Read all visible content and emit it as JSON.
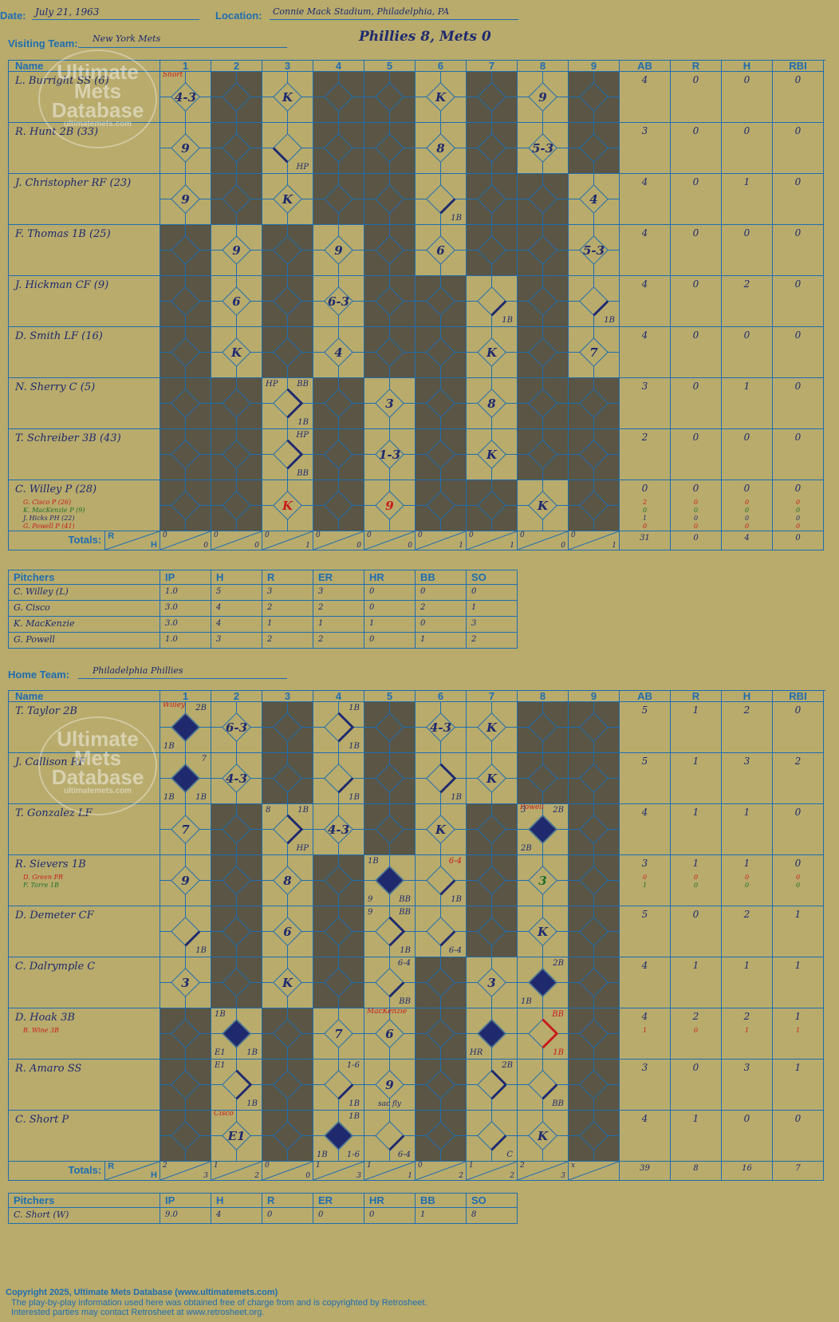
{
  "header": {
    "date_label": "Date:",
    "date": "July 21, 1963",
    "location_label": "Location:",
    "location": "Connie Mack Stadium, Philadelphia, PA",
    "visiting_label": "Visiting Team:",
    "visiting_team": "New York Mets",
    "home_label": "Home Team:",
    "home_team": "Philadelphia Phillies",
    "result": "Phillies 8, Mets 0"
  },
  "watermark": {
    "line1": "Ultimate",
    "line2": "Mets",
    "line3": "Database",
    "url": "ultimatemets.com"
  },
  "columns": {
    "name": "Name",
    "innings": [
      "1",
      "2",
      "3",
      "4",
      "5",
      "6",
      "7",
      "8",
      "9"
    ],
    "ab": "AB",
    "r": "R",
    "h": "H",
    "rbi": "RBI"
  },
  "totals_label": "Totals:",
  "rh_r": "R",
  "rh_h": "H",
  "visiting": {
    "players": [
      {
        "name": "L. Burright SS (6)",
        "subs": [],
        "ab": "4",
        "r": "0",
        "h": "0",
        "rbi": "0",
        "sub_stats": [],
        "cells": [
          {
            "t": "4-3",
            "note": "Short",
            "nc": "red"
          },
          {
            "dark": true
          },
          {
            "t": "K"
          },
          {
            "dark": true
          },
          {
            "dark": true
          },
          {
            "t": "K"
          },
          {
            "dark": true
          },
          {
            "t": "9"
          },
          {
            "dark": true
          }
        ]
      },
      {
        "name": "R. Hunt 2B (33)",
        "subs": [],
        "ab": "3",
        "r": "0",
        "h": "0",
        "rbi": "0",
        "sub_stats": [],
        "cells": [
          {
            "t": "9"
          },
          {
            "dark": true
          },
          {
            "line": "hp",
            "br": "HP"
          },
          {
            "dark": true
          },
          {
            "dark": true
          },
          {
            "t": "8"
          },
          {
            "dark": true
          },
          {
            "t": "5-3"
          },
          {
            "dark": true
          }
        ]
      },
      {
        "name": "J. Christopher RF (23)",
        "subs": [],
        "ab": "4",
        "r": "0",
        "h": "1",
        "rbi": "0",
        "sub_stats": [],
        "cells": [
          {
            "t": "9"
          },
          {
            "dark": true
          },
          {
            "t": "K"
          },
          {
            "dark": true
          },
          {
            "dark": true
          },
          {
            "line": "1b",
            "br": "1B"
          },
          {
            "dark": true
          },
          {
            "dark": true
          },
          {
            "t": "4"
          }
        ]
      },
      {
        "name": "F. Thomas 1B (25)",
        "subs": [],
        "ab": "4",
        "r": "0",
        "h": "0",
        "rbi": "0",
        "sub_stats": [],
        "cells": [
          {
            "dark": true
          },
          {
            "t": "9"
          },
          {
            "dark": true
          },
          {
            "t": "9"
          },
          {
            "dark": true
          },
          {
            "t": "6"
          },
          {
            "dark": true
          },
          {
            "dark": true
          },
          {
            "t": "5-3"
          }
        ]
      },
      {
        "name": "J. Hickman CF (9)",
        "subs": [],
        "ab": "4",
        "r": "0",
        "h": "2",
        "rbi": "0",
        "sub_stats": [],
        "cells": [
          {
            "dark": true
          },
          {
            "t": "6"
          },
          {
            "dark": true
          },
          {
            "t": "6-3"
          },
          {
            "dark": true
          },
          {
            "dark": true
          },
          {
            "line": "1b",
            "br": "1B"
          },
          {
            "dark": true
          },
          {
            "line": "1b",
            "br": "1B"
          }
        ]
      },
      {
        "name": "D. Smith LF (16)",
        "subs": [],
        "ab": "4",
        "r": "0",
        "h": "0",
        "rbi": "0",
        "sub_stats": [],
        "cells": [
          {
            "dark": true
          },
          {
            "t": "K"
          },
          {
            "dark": true
          },
          {
            "t": "4"
          },
          {
            "dark": true
          },
          {
            "dark": true
          },
          {
            "t": "K"
          },
          {
            "dark": true
          },
          {
            "t": "7"
          }
        ]
      },
      {
        "name": "N. Sherry C (5)",
        "subs": [],
        "ab": "3",
        "r": "0",
        "h": "1",
        "rbi": "0",
        "sub_stats": [],
        "cells": [
          {
            "dark": true
          },
          {
            "dark": true
          },
          {
            "line": "run",
            "tl": "HP",
            "tr": "BB",
            "br": "1B"
          },
          {
            "dark": true
          },
          {
            "t": "3"
          },
          {
            "dark": true
          },
          {
            "t": "8"
          },
          {
            "dark": true
          },
          {
            "dark": true
          }
        ]
      },
      {
        "name": "T. Schreiber 3B (43)",
        "subs": [],
        "ab": "2",
        "r": "0",
        "h": "0",
        "rbi": "0",
        "sub_stats": [],
        "cells": [
          {
            "dark": true
          },
          {
            "dark": true
          },
          {
            "line": "run",
            "tr": "HP",
            "br": "BB"
          },
          {
            "dark": true
          },
          {
            "t": "1-3"
          },
          {
            "dark": true
          },
          {
            "t": "K"
          },
          {
            "dark": true
          },
          {
            "dark": true
          }
        ]
      },
      {
        "name": "C. Willey P (28)",
        "subs": [
          {
            "n": "G. Cisco P (26)",
            "c": "red"
          },
          {
            "n": "K. MacKenzie P (9)",
            "c": "green"
          },
          {
            "n": "J. Hicks PH (22)",
            "c": "navy"
          },
          {
            "n": "G. Powell P (41)",
            "c": "red"
          }
        ],
        "ab": "0",
        "r": "0",
        "h": "0",
        "rbi": "0",
        "sub_stats": [
          [
            "2",
            "0",
            "0",
            "0"
          ],
          [
            "0",
            "0",
            "0",
            "0"
          ],
          [
            "1",
            "0",
            "0",
            "0"
          ],
          [
            "0",
            "0",
            "0",
            "0"
          ]
        ],
        "cells": [
          {
            "dark": true
          },
          {
            "dark": true
          },
          {
            "t": "K",
            "c": "red"
          },
          {
            "dark": true
          },
          {
            "t": "9",
            "c": "red"
          },
          {
            "dark": true
          },
          {
            "dark": true
          },
          {
            "t": "K"
          },
          {
            "dark": true
          }
        ]
      }
    ],
    "inning_totals": [
      [
        "0",
        "0"
      ],
      [
        "0",
        "0"
      ],
      [
        "0",
        "1"
      ],
      [
        "0",
        "0"
      ],
      [
        "0",
        "0"
      ],
      [
        "0",
        "1"
      ],
      [
        "0",
        "1"
      ],
      [
        "0",
        "0"
      ],
      [
        "0",
        "1"
      ]
    ],
    "totals": {
      "ab": "31",
      "r": "0",
      "h": "4",
      "rbi": "0"
    }
  },
  "visiting_pitching": {
    "headers": [
      "Pitchers",
      "IP",
      "H",
      "R",
      "ER",
      "HR",
      "BB",
      "SO"
    ],
    "rows": [
      [
        "C. Willey (L)",
        "1.0",
        "5",
        "3",
        "3",
        "0",
        "0",
        "0"
      ],
      [
        "G. Cisco",
        "3.0",
        "4",
        "2",
        "2",
        "0",
        "2",
        "1"
      ],
      [
        "K. MacKenzie",
        "3.0",
        "4",
        "1",
        "1",
        "1",
        "0",
        "3"
      ],
      [
        "G. Powell",
        "1.0",
        "3",
        "2",
        "2",
        "0",
        "1",
        "2"
      ]
    ]
  },
  "home": {
    "players": [
      {
        "name": "T. Taylor 2B",
        "subs": [],
        "ab": "5",
        "r": "1",
        "h": "2",
        "rbi": "0",
        "sub_stats": [],
        "cells": [
          {
            "run": true,
            "tr": "2B",
            "bl": "1B",
            "note": "Willey",
            "nc": "red"
          },
          {
            "t": "6-3"
          },
          {
            "dark": true
          },
          {
            "line": "run",
            "tr": "1B",
            "br": "1B"
          },
          {
            "dark": true
          },
          {
            "t": "4-3"
          },
          {
            "t": "K"
          },
          {
            "dark": true
          },
          {
            "dark": true
          }
        ]
      },
      {
        "name": "J. Callison RF",
        "subs": [],
        "ab": "5",
        "r": "1",
        "h": "3",
        "rbi": "2",
        "sub_stats": [],
        "cells": [
          {
            "run": true,
            "tr": "7",
            "bl": "1B",
            "br": "1B"
          },
          {
            "t": "4-3"
          },
          {
            "dark": true
          },
          {
            "line": "1b",
            "br": "1B"
          },
          {
            "dark": true
          },
          {
            "line": "run",
            "br": "1B"
          },
          {
            "t": "K"
          },
          {
            "dark": true
          },
          {
            "dark": true
          }
        ]
      },
      {
        "name": "T. Gonzalez LF",
        "subs": [],
        "ab": "4",
        "r": "1",
        "h": "1",
        "rbi": "0",
        "sub_stats": [],
        "cells": [
          {
            "t": "7"
          },
          {
            "dark": true
          },
          {
            "line": "run",
            "tl": "8",
            "tr": "1B",
            "br": "HP"
          },
          {
            "t": "4-3"
          },
          {
            "dark": true
          },
          {
            "t": "K"
          },
          {
            "dark": true
          },
          {
            "run": true,
            "tl": "3",
            "tr": "2B",
            "bl": "2B",
            "note": "Powell",
            "nc": "red"
          },
          {
            "dark": true
          }
        ]
      },
      {
        "name": "R. Sievers 1B",
        "subs": [
          {
            "n": "D. Green PR",
            "c": "red"
          },
          {
            "n": "F. Torre 1B",
            "c": "green"
          }
        ],
        "ab": "3",
        "r": "1",
        "h": "1",
        "rbi": "0",
        "sub_stats": [
          [
            "0",
            "0",
            "0",
            "0"
          ],
          [
            "1",
            "0",
            "0",
            "0"
          ]
        ],
        "cells": [
          {
            "t": "9"
          },
          {
            "dark": true
          },
          {
            "t": "8"
          },
          {
            "dark": true
          },
          {
            "run": true,
            "tl": "1B",
            "bl": "9",
            "br": "BB"
          },
          {
            "line": "1b",
            "tr": "6-4",
            "br": "1B",
            "trc": "red"
          },
          {
            "dark": true
          },
          {
            "t": "3",
            "c": "green"
          },
          {
            "dark": true
          }
        ]
      },
      {
        "name": "D. Demeter CF",
        "subs": [],
        "ab": "5",
        "r": "0",
        "h": "2",
        "rbi": "1",
        "sub_stats": [],
        "cells": [
          {
            "line": "1b",
            "br": "1B"
          },
          {
            "dark": true
          },
          {
            "t": "6"
          },
          {
            "dark": true
          },
          {
            "line": "run",
            "tl": "9",
            "tr": "BB",
            "br": "1B"
          },
          {
            "line": "1b",
            "br": "6-4"
          },
          {
            "dark": true
          },
          {
            "t": "K"
          },
          {
            "dark": true
          }
        ]
      },
      {
        "name": "C. Dalrymple C",
        "subs": [],
        "ab": "4",
        "r": "1",
        "h": "1",
        "rbi": "1",
        "sub_stats": [],
        "cells": [
          {
            "t": "3"
          },
          {
            "dark": true
          },
          {
            "t": "K"
          },
          {
            "dark": true
          },
          {
            "line": "bb",
            "tr": "6-4",
            "br": "BB"
          },
          {
            "dark": true
          },
          {
            "t": "3"
          },
          {
            "run": true,
            "tr": "2B",
            "bl": "1B"
          },
          {
            "dark": true
          }
        ]
      },
      {
        "name": "D. Hoak 3B",
        "subs": [
          {
            "n": "B. Wine 3B",
            "c": "red"
          }
        ],
        "ab": "4",
        "r": "2",
        "h": "2",
        "rbi": "1",
        "sub_stats": [
          [
            "1",
            "0",
            "1",
            "1"
          ]
        ],
        "cells": [
          {
            "dark": true
          },
          {
            "run": true,
            "tl": "1B",
            "bl": "E1",
            "br": "1B"
          },
          {
            "dark": true
          },
          {
            "t": "7"
          },
          {
            "t": "6",
            "note": "MacKenzie",
            "nc": "red"
          },
          {
            "dark": true
          },
          {
            "run": true,
            "bl": "HR"
          },
          {
            "line": "redbb",
            "tr": "BB",
            "br": "1B",
            "trc": "red",
            "brc": "red"
          },
          {
            "dark": true
          }
        ]
      },
      {
        "name": "R. Amaro SS",
        "subs": [],
        "ab": "3",
        "r": "0",
        "h": "3",
        "rbi": "1",
        "sub_stats": [],
        "cells": [
          {
            "dark": true
          },
          {
            "line": "run",
            "tl": "E1",
            "br": "1B"
          },
          {
            "dark": true
          },
          {
            "line": "1b",
            "tr": "1-6",
            "br": "1B"
          },
          {
            "t": "9",
            "bc": "sac fly"
          },
          {
            "dark": true
          },
          {
            "line": "run2b",
            "tr": "2B"
          },
          {
            "line": "bb",
            "br": "BB"
          },
          {
            "dark": true
          }
        ]
      },
      {
        "name": "C. Short P",
        "subs": [],
        "ab": "4",
        "r": "1",
        "h": "0",
        "rbi": "0",
        "sub_stats": [],
        "cells": [
          {
            "dark": true
          },
          {
            "t": "E1",
            "note": "Cisco",
            "nc": "red"
          },
          {
            "dark": true
          },
          {
            "run": true,
            "tr": "1B",
            "bl": "1B",
            "br": "1-6"
          },
          {
            "line": "1b",
            "br": "6-4"
          },
          {
            "dark": true
          },
          {
            "line": "1b",
            "br": "C"
          },
          {
            "t": "K"
          },
          {
            "dark": true
          }
        ]
      }
    ],
    "inning_totals": [
      [
        "2",
        "3"
      ],
      [
        "1",
        "2"
      ],
      [
        "0",
        "0"
      ],
      [
        "1",
        "3"
      ],
      [
        "1",
        "1"
      ],
      [
        "0",
        "2"
      ],
      [
        "1",
        "2"
      ],
      [
        "2",
        "3"
      ],
      [
        "x",
        ""
      ]
    ],
    "totals": {
      "ab": "39",
      "r": "8",
      "h": "16",
      "rbi": "7"
    }
  },
  "home_pitching": {
    "headers": [
      "Pitchers",
      "IP",
      "H",
      "R",
      "ER",
      "HR",
      "BB",
      "SO"
    ],
    "rows": [
      [
        "C. Short (W)",
        "9.0",
        "4",
        "0",
        "0",
        "0",
        "1",
        "8"
      ]
    ]
  },
  "footer": {
    "line1": "Copyright 2025, Ultimate Mets Database (www.ultimatemets.com)",
    "line2": "The play-by-play information used here was obtained free of charge from and is copyrighted by Retrosheet.",
    "line3": "Interested parties may contact Retrosheet at www.retrosheet.org."
  },
  "colors": {
    "background": "#b8ab6c",
    "grid": "#1f6db0",
    "dark_cell": "#5a5544",
    "ink": "#1f2a6e",
    "red": "#c81c1c",
    "green": "#1f6e2a"
  }
}
